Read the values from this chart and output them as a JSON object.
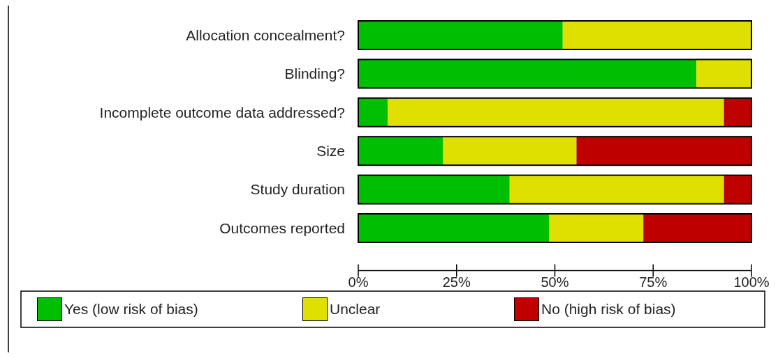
{
  "chart_data": {
    "type": "bar",
    "orientation": "horizontal",
    "stacked": true,
    "categories": [
      "Allocation concealment?",
      "Blinding?",
      "Incomplete outcome data addressed?",
      "Size",
      "Study duration",
      "Outcomes reported"
    ],
    "series": [
      {
        "name": "Yes (low risk of bias)",
        "color": "#00bf00",
        "values": [
          52,
          86,
          7.5,
          21.5,
          38.5,
          48.5
        ]
      },
      {
        "name": "Unclear",
        "color": "#e0e000",
        "values": [
          48,
          14,
          85.5,
          34,
          54.5,
          24
        ]
      },
      {
        "name": "No (high risk of bias)",
        "color": "#bf0000",
        "values": [
          0,
          0,
          7,
          44.5,
          7,
          27.5
        ]
      }
    ],
    "xlim": [
      0,
      100
    ],
    "xticks": [
      {
        "value": 0,
        "label": "0%"
      },
      {
        "value": 25,
        "label": "25%"
      },
      {
        "value": 50,
        "label": "50%"
      },
      {
        "value": 75,
        "label": "75%"
      },
      {
        "value": 100,
        "label": "100%"
      }
    ],
    "grid": false,
    "legend": "bottom"
  }
}
